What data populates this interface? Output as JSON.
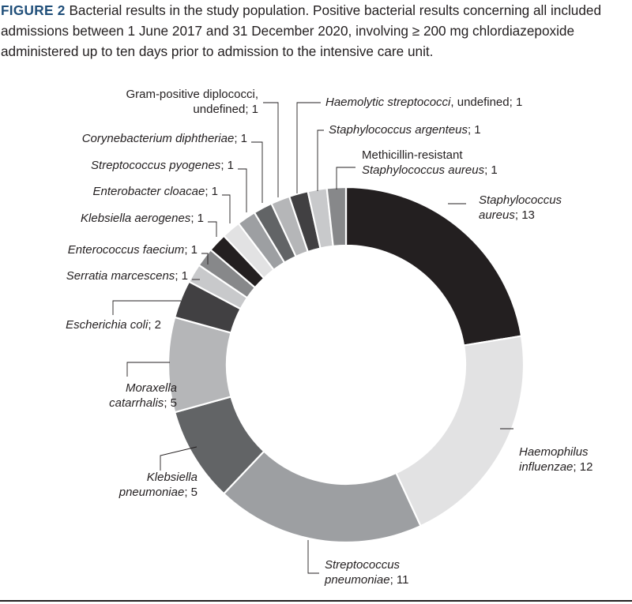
{
  "caption": {
    "label": "FIGURE 2",
    "text": "Bacterial results in the study population. Positive bacterial results concerning all included admissions between 1 June 2017 and 31 December 2020, involving ≥ 200 mg chlordiazepoxide administered up to ten days prior to admission to the intensive care unit."
  },
  "chart_data": {
    "type": "pie",
    "donut": true,
    "total": 59,
    "slices": [
      {
        "name": "Staphylococcus aureus",
        "value": 13,
        "color": "#231f20"
      },
      {
        "name": "Haemophilus influenzae",
        "value": 12,
        "color": "#e2e2e3"
      },
      {
        "name": "Streptococcus pneumoniae",
        "value": 11,
        "color": "#9d9fa2"
      },
      {
        "name": "Klebsiella pneumoniae",
        "value": 5,
        "color": "#626466"
      },
      {
        "name": "Moraxella catarrhalis",
        "value": 5,
        "color": "#b5b6b8"
      },
      {
        "name": "Escherichia coli",
        "value": 2,
        "color": "#414042"
      },
      {
        "name": "Serratia marcescens",
        "value": 1,
        "color": "#c8c9cb"
      },
      {
        "name": "Enterococcus faecium",
        "value": 1,
        "color": "#87888a"
      },
      {
        "name": "Klebsiella aerogenes",
        "value": 1,
        "color": "#231f20"
      },
      {
        "name": "Enterobacter cloacae",
        "value": 1,
        "color": "#e2e2e3"
      },
      {
        "name": "Streptococcus pyogenes",
        "value": 1,
        "color": "#9d9fa2"
      },
      {
        "name": "Corynebacterium diphtheriae",
        "value": 1,
        "color": "#626466"
      },
      {
        "name": "Gram-positive diplococci, undefined",
        "value": 1,
        "color": "#b5b6b8"
      },
      {
        "name": "Haemolytic streptococci, undefined",
        "value": 1,
        "color": "#414042"
      },
      {
        "name": "Staphylococcus argenteus",
        "value": 1,
        "color": "#c8c9cb"
      },
      {
        "name": "Methicillin-resistant Staphylococcus aureus",
        "value": 1,
        "color": "#87888a"
      }
    ]
  }
}
